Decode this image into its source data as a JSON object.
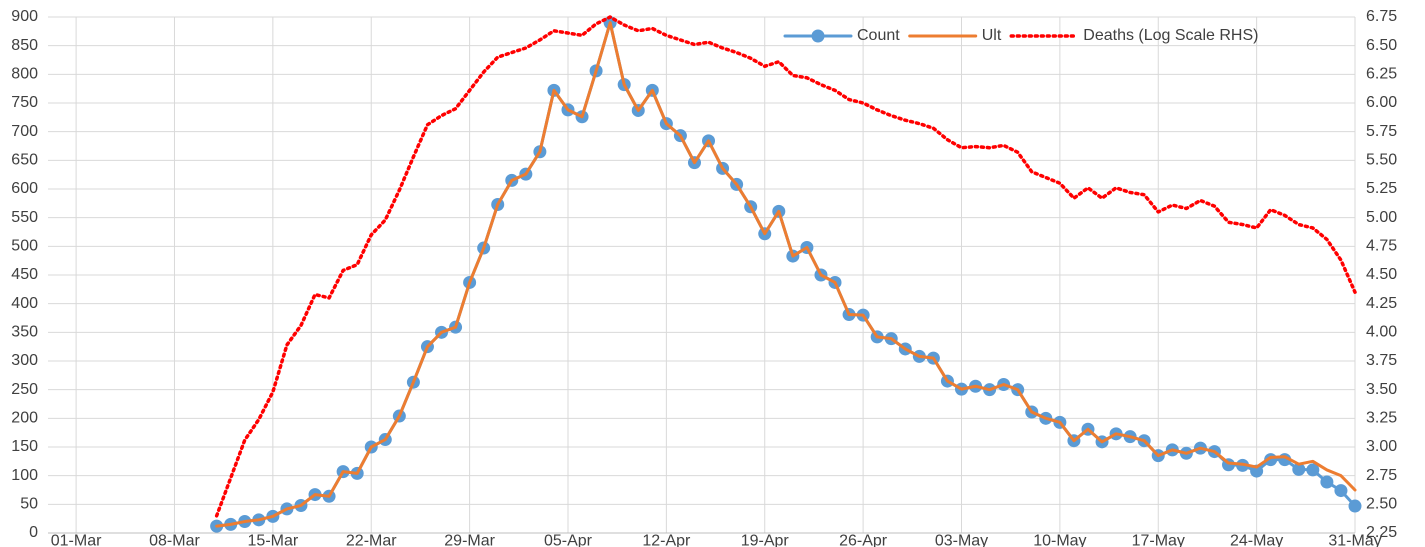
{
  "chart_data": {
    "type": "line",
    "x": [
      "11-Mar",
      "12-Mar",
      "13-Mar",
      "14-Mar",
      "15-Mar",
      "16-Mar",
      "17-Mar",
      "18-Mar",
      "19-Mar",
      "20-Mar",
      "21-Mar",
      "22-Mar",
      "23-Mar",
      "24-Mar",
      "25-Mar",
      "26-Mar",
      "27-Mar",
      "28-Mar",
      "29-Mar",
      "30-Mar",
      "31-Mar",
      "01-Apr",
      "02-Apr",
      "03-Apr",
      "04-Apr",
      "05-Apr",
      "06-Apr",
      "07-Apr",
      "08-Apr",
      "09-Apr",
      "10-Apr",
      "11-Apr",
      "12-Apr",
      "13-Apr",
      "14-Apr",
      "15-Apr",
      "16-Apr",
      "17-Apr",
      "18-Apr",
      "19-Apr",
      "20-Apr",
      "21-Apr",
      "22-Apr",
      "23-Apr",
      "24-Apr",
      "25-Apr",
      "26-Apr",
      "27-Apr",
      "28-Apr",
      "29-Apr",
      "30-Apr",
      "01-May",
      "02-May",
      "03-May",
      "04-May",
      "05-May",
      "06-May",
      "07-May",
      "08-May",
      "09-May",
      "10-May",
      "11-May",
      "12-May",
      "13-May",
      "14-May",
      "15-May",
      "16-May",
      "17-May",
      "18-May",
      "19-May",
      "20-May",
      "21-May",
      "22-May",
      "23-May",
      "24-May",
      "25-May",
      "26-May",
      "27-May",
      "28-May",
      "29-May",
      "30-May",
      "31-May"
    ],
    "series": [
      {
        "name": "Count",
        "color": "#5b9bd5",
        "marker": "circle",
        "line_style": "solid",
        "values": [
          12,
          15,
          20,
          23,
          29,
          42,
          48,
          67,
          64,
          107,
          104,
          150,
          163,
          204,
          263,
          325,
          350,
          359,
          437,
          497,
          573,
          615,
          626,
          665,
          772,
          738,
          726,
          806,
          890,
          782,
          737,
          772,
          714,
          693,
          646,
          684,
          636,
          608,
          569,
          522,
          561,
          483,
          498,
          450,
          437,
          381,
          380,
          342,
          339,
          321,
          308,
          305,
          265,
          251,
          256,
          250,
          259,
          250,
          211,
          200,
          193,
          161,
          181,
          159,
          173,
          168,
          161,
          135,
          145,
          139,
          148,
          142,
          119,
          118,
          108,
          128,
          128,
          111,
          110,
          89,
          74,
          47
        ]
      },
      {
        "name": "Ult",
        "color": "#ed7d31",
        "marker": "none",
        "line_style": "solid",
        "values": [
          12,
          15,
          20,
          23,
          29,
          42,
          48,
          67,
          64,
          107,
          104,
          150,
          163,
          204,
          263,
          325,
          350,
          359,
          437,
          497,
          573,
          615,
          626,
          665,
          772,
          738,
          726,
          806,
          890,
          782,
          737,
          772,
          714,
          693,
          646,
          684,
          636,
          608,
          569,
          522,
          561,
          483,
          498,
          450,
          437,
          381,
          380,
          342,
          339,
          321,
          308,
          305,
          265,
          251,
          256,
          250,
          259,
          250,
          211,
          200,
          193,
          161,
          181,
          159,
          173,
          168,
          161,
          135,
          145,
          139,
          148,
          142,
          122,
          120,
          115,
          132,
          133,
          120,
          125,
          110,
          100,
          75
        ]
      },
      {
        "name": "Deaths (Log Scale RHS)",
        "color": "#ff0000",
        "marker": "none",
        "line_style": "dotted",
        "axis": "y2",
        "values": [
          2.4,
          2.73,
          3.06,
          3.24,
          3.48,
          3.89,
          4.06,
          4.33,
          4.3,
          4.54,
          4.59,
          4.85,
          4.98,
          5.24,
          5.53,
          5.81,
          5.89,
          5.95,
          6.11,
          6.27,
          6.4,
          6.44,
          6.48,
          6.55,
          6.63,
          6.61,
          6.59,
          6.69,
          6.75,
          6.68,
          6.63,
          6.65,
          6.59,
          6.55,
          6.51,
          6.53,
          6.48,
          6.44,
          6.39,
          6.32,
          6.36,
          6.24,
          6.22,
          6.16,
          6.11,
          6.03,
          6.0,
          5.94,
          5.89,
          5.85,
          5.82,
          5.78,
          5.68,
          5.61,
          5.62,
          5.61,
          5.63,
          5.57,
          5.4,
          5.35,
          5.3,
          5.17,
          5.26,
          5.17,
          5.26,
          5.22,
          5.2,
          5.05,
          5.11,
          5.08,
          5.15,
          5.1,
          4.96,
          4.94,
          4.91,
          5.07,
          5.02,
          4.94,
          4.91,
          4.81,
          4.63,
          4.35
        ]
      }
    ],
    "xlim": [
      "28-Feb",
      "31-May"
    ],
    "xticks": [
      "01-Mar",
      "08-Mar",
      "15-Mar",
      "22-Mar",
      "29-Mar",
      "05-Apr",
      "12-Apr",
      "19-Apr",
      "26-Apr",
      "03-May",
      "10-May",
      "17-May",
      "24-May",
      "31-May"
    ],
    "ylim": [
      0,
      900
    ],
    "yticks": [
      0,
      50,
      100,
      150,
      200,
      250,
      300,
      350,
      400,
      450,
      500,
      550,
      600,
      650,
      700,
      750,
      800,
      850,
      900
    ],
    "y2lim": [
      2.25,
      6.75
    ],
    "y2ticks": [
      2.25,
      {
        "value": 2.5,
        "label": "2.50"
      },
      2.75,
      {
        "value": 3,
        "label": "3.00"
      },
      3.25,
      {
        "value": 3.5,
        "label": "3.50"
      },
      3.75,
      {
        "value": 4,
        "label": "4.00"
      },
      4.25,
      {
        "value": 4.5,
        "label": "4.50"
      },
      4.75,
      {
        "value": 5,
        "label": "5.00"
      },
      5.25,
      {
        "value": 5.5,
        "label": "5.50"
      },
      5.75,
      {
        "value": 6,
        "label": "6.00"
      },
      6.25,
      {
        "value": 6.5,
        "label": "6.50"
      },
      6.75
    ],
    "grid": true,
    "legend": "top-right"
  }
}
